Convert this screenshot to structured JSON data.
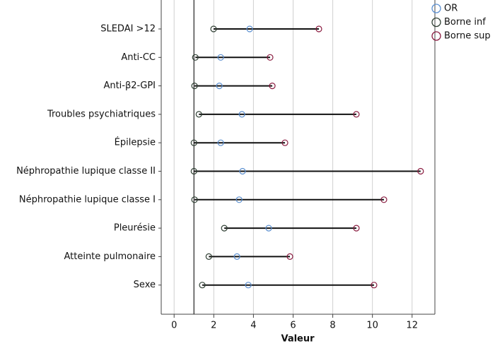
{
  "chart_data": {
    "type": "range",
    "x_label": "Valeur",
    "categories": [
      "SLEDAI >12",
      "Anti-CC",
      "Anti-β2-GPI",
      "Troubles psychiatriques",
      "Épilepsie",
      "Néphropathie lupique classe II",
      "Néphropathie lupique classe I",
      "Pleurésie",
      "Atteinte pulmonaire",
      "Sexe"
    ],
    "series": [
      {
        "name": "OR",
        "color": "#5b8fd0",
        "values": [
          3.81,
          2.35,
          2.28,
          3.42,
          2.35,
          3.45,
          3.28,
          4.77,
          3.17,
          3.74
        ]
      },
      {
        "name": "Borne inf",
        "color": "#2f3f33",
        "values": [
          1.99,
          1.07,
          1.03,
          1.25,
          1.0,
          1.0,
          1.03,
          2.53,
          1.75,
          1.42
        ]
      },
      {
        "name": "Borne sup",
        "color": "#8a1c40",
        "values": [
          7.3,
          4.84,
          4.95,
          9.19,
          5.59,
          12.43,
          10.58,
          9.19,
          5.84,
          10.08
        ]
      }
    ],
    "reference_line": 1,
    "xlim": [
      -0.65,
      13.15
    ],
    "xticks": [
      0,
      2,
      4,
      6,
      8,
      10,
      12
    ],
    "grid": true
  }
}
